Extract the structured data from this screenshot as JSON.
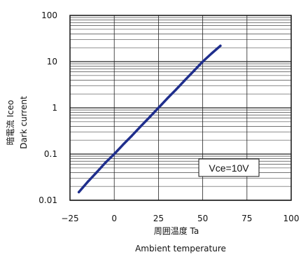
{
  "chart_data": {
    "type": "line",
    "title": "",
    "xlabel": "周囲温度 Ta",
    "xlabel_en": "Ambient temperature",
    "ylabel": "暗電流 Iceo",
    "ylabel_en": "Dark current",
    "xlim": [
      -25,
      100
    ],
    "ylim": [
      0.01,
      100
    ],
    "yscale": "log",
    "x_ticks": [
      "−25",
      "0",
      "25",
      "50",
      "75",
      "100"
    ],
    "x_tick_values": [
      -25,
      0,
      25,
      50,
      75,
      100
    ],
    "y_ticks": [
      "0.01",
      "0.1",
      "1",
      "10",
      "100"
    ],
    "y_tick_values": [
      0.01,
      0.1,
      1,
      10,
      100
    ],
    "grid": true,
    "annotation": "Vce=10V",
    "series": [
      {
        "color": "#1f2e8c",
        "x": [
          -20,
          -15,
          -10,
          -5,
          0,
          5,
          10,
          15,
          20,
          25,
          30,
          35,
          40,
          45,
          50,
          55,
          60
        ],
        "y": [
          0.015,
          0.025,
          0.04,
          0.065,
          0.1,
          0.16,
          0.25,
          0.4,
          0.63,
          1.0,
          1.6,
          2.5,
          4.0,
          6.3,
          10,
          15,
          22
        ]
      }
    ]
  }
}
